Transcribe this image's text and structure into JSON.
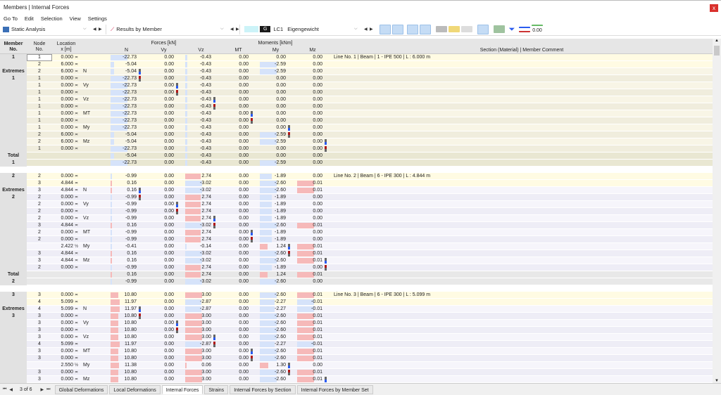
{
  "window": {
    "title": "Members | Internal Forces",
    "close": "x"
  },
  "menu": [
    "Go To",
    "Edit",
    "Selection",
    "View",
    "Settings"
  ],
  "toolbar": {
    "analysis": "Static Analysis",
    "results": "Results by Member",
    "lc_badge": "G",
    "lc": "LC1",
    "lc_name": "Eigengewicht",
    "decimal_label": "0.00"
  },
  "columns": {
    "member": [
      "Member",
      "No."
    ],
    "node": [
      "Node",
      "No."
    ],
    "location": [
      "Location",
      "x [m]"
    ],
    "forces_group": "Forces [kN]",
    "moments_group": "Moments [kNm]",
    "N": "N",
    "Vy": "Vy",
    "Vz": "Vz",
    "MT": "MT",
    "My": "My",
    "Mz": "Mz",
    "comment": "Section (Material) | Member Comment"
  },
  "labels": {
    "extremes": "Extremes",
    "total": "Total"
  },
  "colors": {
    "negative_bar": "#d6e3fa",
    "positive_bar": "#f6b9b9",
    "max_marker": "#2a5bef",
    "min_marker": "#b01818"
  },
  "groups": [
    {
      "member": "1",
      "comment": "Line No. 1 | Beam | 1 - IPE 500 | L : 6.000 m",
      "theme": "beige",
      "rows": [
        [
          "1",
          "0.000",
          "≍",
          "",
          [
            -22.73,
            0,
            -0.43,
            0,
            0,
            0
          ]
        ],
        [
          "2",
          "6.000",
          "≍",
          "",
          [
            -5.04,
            0,
            -0.43,
            0,
            -2.59,
            0
          ]
        ]
      ],
      "extremes": [
        [
          "2",
          "6.000",
          "≍",
          "N",
          [
            -5.04,
            0,
            -0.43,
            0,
            -2.59,
            0
          ],
          0,
          "max"
        ],
        [
          "1",
          "0.000",
          "≍",
          "",
          [
            -22.73,
            0,
            -0.43,
            0,
            0,
            0
          ],
          0,
          "min"
        ],
        [
          "1",
          "0.000",
          "≍",
          "Vy",
          [
            -22.73,
            0,
            -0.43,
            0,
            0,
            0
          ],
          1,
          "max"
        ],
        [
          "1",
          "0.000",
          "≍",
          "",
          [
            -22.73,
            0,
            -0.43,
            0,
            0,
            0
          ],
          1,
          "min"
        ],
        [
          "1",
          "0.000",
          "≍",
          "Vz",
          [
            -22.73,
            0,
            -0.43,
            0,
            0,
            0
          ],
          2,
          "max"
        ],
        [
          "1",
          "0.000",
          "≍",
          "",
          [
            -22.73,
            0,
            -0.43,
            0,
            0,
            0
          ],
          2,
          "min"
        ],
        [
          "1",
          "0.000",
          "≍",
          "MT",
          [
            -22.73,
            0,
            -0.43,
            0,
            0,
            0
          ],
          3,
          "max"
        ],
        [
          "1",
          "0.000",
          "≍",
          "",
          [
            -22.73,
            0,
            -0.43,
            0,
            0,
            0
          ],
          3,
          "min"
        ],
        [
          "1",
          "0.000",
          "≍",
          "My",
          [
            -22.73,
            0,
            -0.43,
            0,
            0,
            0
          ],
          4,
          "max"
        ],
        [
          "2",
          "6.000",
          "≍",
          "",
          [
            -5.04,
            0,
            -0.43,
            0,
            -2.59,
            0
          ],
          4,
          "min"
        ],
        [
          "2",
          "6.000",
          "≍",
          "Mz",
          [
            -5.04,
            0,
            -0.43,
            0,
            -2.59,
            0
          ],
          5,
          "max"
        ],
        [
          "1",
          "0.000",
          "≍",
          "",
          [
            -22.73,
            0,
            -0.43,
            0,
            0,
            0
          ],
          5,
          "min"
        ]
      ],
      "totals": [
        [
          -5.04,
          0,
          -0.43,
          0,
          0,
          0
        ],
        [
          -22.73,
          0,
          -0.43,
          0,
          -2.59,
          0
        ]
      ]
    },
    {
      "member": "2",
      "comment": "Line No. 2 | Beam | 6 - IPE 300 | L : 4.844 m",
      "theme": "lavender",
      "rows": [
        [
          "2",
          "0.000",
          "≍",
          "",
          [
            -0.99,
            0,
            2.74,
            0,
            -1.89,
            0
          ]
        ],
        [
          "3",
          "4.844",
          "≍",
          "",
          [
            0.16,
            0,
            -3.02,
            0,
            -2.6,
            0.01
          ]
        ]
      ],
      "extremes": [
        [
          "3",
          "4.844",
          "≍",
          "N",
          [
            0.16,
            0,
            -3.02,
            0,
            -2.6,
            0.01
          ],
          0,
          "max"
        ],
        [
          "2",
          "0.000",
          "≍",
          "",
          [
            -0.99,
            0,
            2.74,
            0,
            -1.89,
            0
          ],
          0,
          "min"
        ],
        [
          "2",
          "0.000",
          "≍",
          "Vy",
          [
            -0.99,
            0,
            2.74,
            0,
            -1.89,
            0
          ],
          1,
          "max"
        ],
        [
          "2",
          "0.000",
          "≍",
          "",
          [
            -0.99,
            0,
            2.74,
            0,
            -1.89,
            0
          ],
          1,
          "min"
        ],
        [
          "2",
          "0.000",
          "≍",
          "Vz",
          [
            -0.99,
            0,
            2.74,
            0,
            -1.89,
            0
          ],
          2,
          "max"
        ],
        [
          "3",
          "4.844",
          "≍",
          "",
          [
            0.16,
            0,
            -3.02,
            0,
            -2.6,
            0.01
          ],
          2,
          "min"
        ],
        [
          "2",
          "0.000",
          "≍",
          "MT",
          [
            -0.99,
            0,
            2.74,
            0,
            -1.89,
            0
          ],
          3,
          "max"
        ],
        [
          "2",
          "0.000",
          "≍",
          "",
          [
            -0.99,
            0,
            2.74,
            0,
            -1.89,
            0
          ],
          3,
          "min"
        ],
        [
          "",
          "2.422",
          "½",
          "My",
          [
            -0.41,
            0,
            -0.14,
            0,
            1.24,
            0.01
          ],
          4,
          "max"
        ],
        [
          "3",
          "4.844",
          "≍",
          "",
          [
            0.16,
            0,
            -3.02,
            0,
            -2.6,
            0.01
          ],
          4,
          "min"
        ],
        [
          "3",
          "4.844",
          "≍",
          "Mz",
          [
            0.16,
            0,
            -3.02,
            0,
            -2.6,
            0.01
          ],
          5,
          "max"
        ],
        [
          "2",
          "0.000",
          "≍",
          "",
          [
            -0.99,
            0,
            2.74,
            0,
            -1.89,
            0
          ],
          5,
          "min"
        ]
      ],
      "totals": [
        [
          0.16,
          0,
          2.74,
          0,
          1.24,
          0.01
        ],
        [
          -0.99,
          0,
          -3.02,
          0,
          -2.6,
          0
        ]
      ]
    },
    {
      "member": "3",
      "comment": "Line No. 3 | Beam | 6 - IPE 300 | L : 5.099 m",
      "theme": "lavender",
      "rows": [
        [
          "3",
          "0.000",
          "≍",
          "",
          [
            10.8,
            0,
            3.0,
            0,
            -2.6,
            0.01
          ]
        ],
        [
          "4",
          "5.099",
          "≍",
          "",
          [
            11.97,
            0,
            -2.87,
            0,
            -2.27,
            -0.01
          ]
        ]
      ],
      "extremes": [
        [
          "4",
          "5.099",
          "≍",
          "N",
          [
            11.97,
            0,
            -2.87,
            0,
            -2.27,
            -0.01
          ],
          0,
          "max"
        ],
        [
          "3",
          "0.000",
          "≍",
          "",
          [
            10.8,
            0,
            3.0,
            0,
            -2.6,
            0.01
          ],
          0,
          "min"
        ],
        [
          "3",
          "0.000",
          "≍",
          "Vy",
          [
            10.8,
            0,
            3.0,
            0,
            -2.6,
            0.01
          ],
          1,
          "max"
        ],
        [
          "3",
          "0.000",
          "≍",
          "",
          [
            10.8,
            0,
            3.0,
            0,
            -2.6,
            0.01
          ],
          1,
          "min"
        ],
        [
          "3",
          "0.000",
          "≍",
          "Vz",
          [
            10.8,
            0,
            3.0,
            0,
            -2.6,
            0.01
          ],
          2,
          "max"
        ],
        [
          "4",
          "5.099",
          "≍",
          "",
          [
            11.97,
            0,
            -2.87,
            0,
            -2.27,
            -0.01
          ],
          2,
          "min"
        ],
        [
          "3",
          "0.000",
          "≍",
          "MT",
          [
            10.8,
            0,
            3.0,
            0,
            -2.6,
            0.01
          ],
          3,
          "max"
        ],
        [
          "3",
          "0.000",
          "≍",
          "",
          [
            10.8,
            0,
            3.0,
            0,
            -2.6,
            0.01
          ],
          3,
          "min"
        ],
        [
          "",
          "2.550",
          "½",
          "My",
          [
            11.38,
            0,
            0.06,
            0,
            1.3,
            0.0
          ],
          4,
          "max"
        ],
        [
          "3",
          "0.000",
          "≍",
          "",
          [
            10.8,
            0,
            3.0,
            0,
            -2.6,
            0.01
          ],
          4,
          "min"
        ],
        [
          "3",
          "0.000",
          "≍",
          "Mz",
          [
            10.8,
            0,
            3.0,
            0,
            -2.6,
            0.01
          ],
          5,
          "max"
        ]
      ],
      "totals": []
    }
  ],
  "pager": {
    "first": "⏮",
    "prev": "◀",
    "label": "3 of 6",
    "next": "▶",
    "last": "⏭"
  },
  "tabs": [
    {
      "label": "Global Deformations",
      "active": false
    },
    {
      "label": "Local Deformations",
      "active": false
    },
    {
      "label": "Internal Forces",
      "active": true
    },
    {
      "label": "Strains",
      "active": false
    },
    {
      "label": "Internal Forces by Section",
      "active": false
    },
    {
      "label": "Internal Forces by Member Set",
      "active": false
    }
  ]
}
